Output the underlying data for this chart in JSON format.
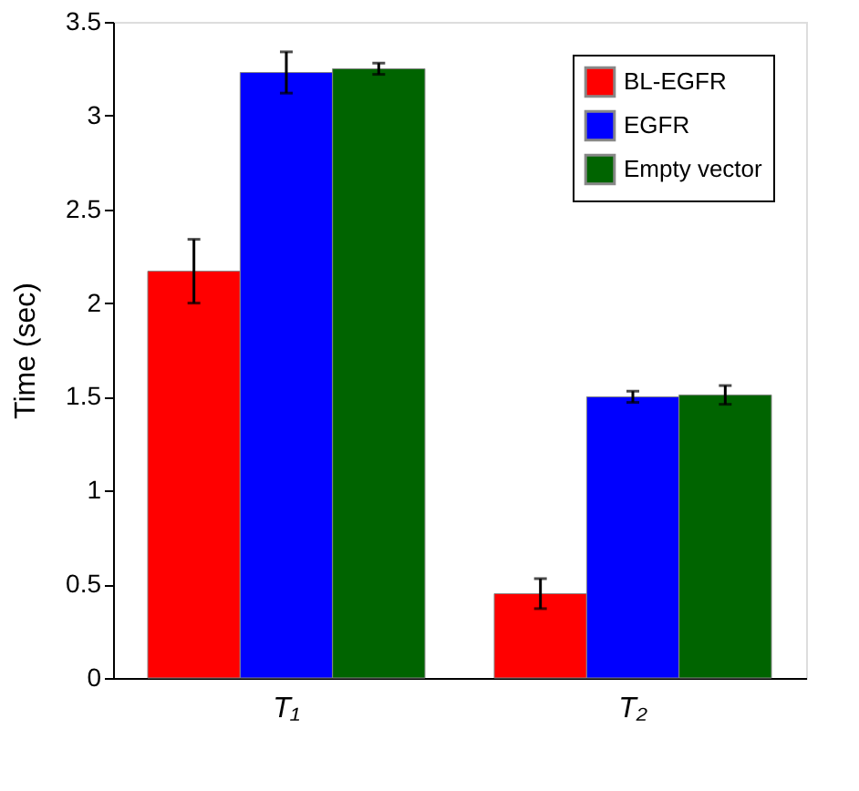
{
  "chart_data": {
    "type": "bar",
    "ylabel": "Time (sec)",
    "categories": [
      "T₁",
      "T₂"
    ],
    "series": [
      {
        "name": "BL-EGFR",
        "color": "#ff0000",
        "values": [
          2.17,
          0.45
        ],
        "errors": [
          0.17,
          0.08
        ]
      },
      {
        "name": "EGFR",
        "color": "#0000ff",
        "values": [
          3.23,
          1.5
        ],
        "errors": [
          0.11,
          0.03
        ]
      },
      {
        "name": "Empty vector",
        "color": "#006400",
        "values": [
          3.25,
          1.51
        ],
        "errors": [
          0.03,
          0.05
        ]
      }
    ],
    "ylim": [
      0,
      3.5
    ],
    "yticks": [
      0,
      0.5,
      1,
      1.5,
      2,
      2.5,
      3,
      3.5
    ],
    "legend": "top right",
    "grid": false
  }
}
